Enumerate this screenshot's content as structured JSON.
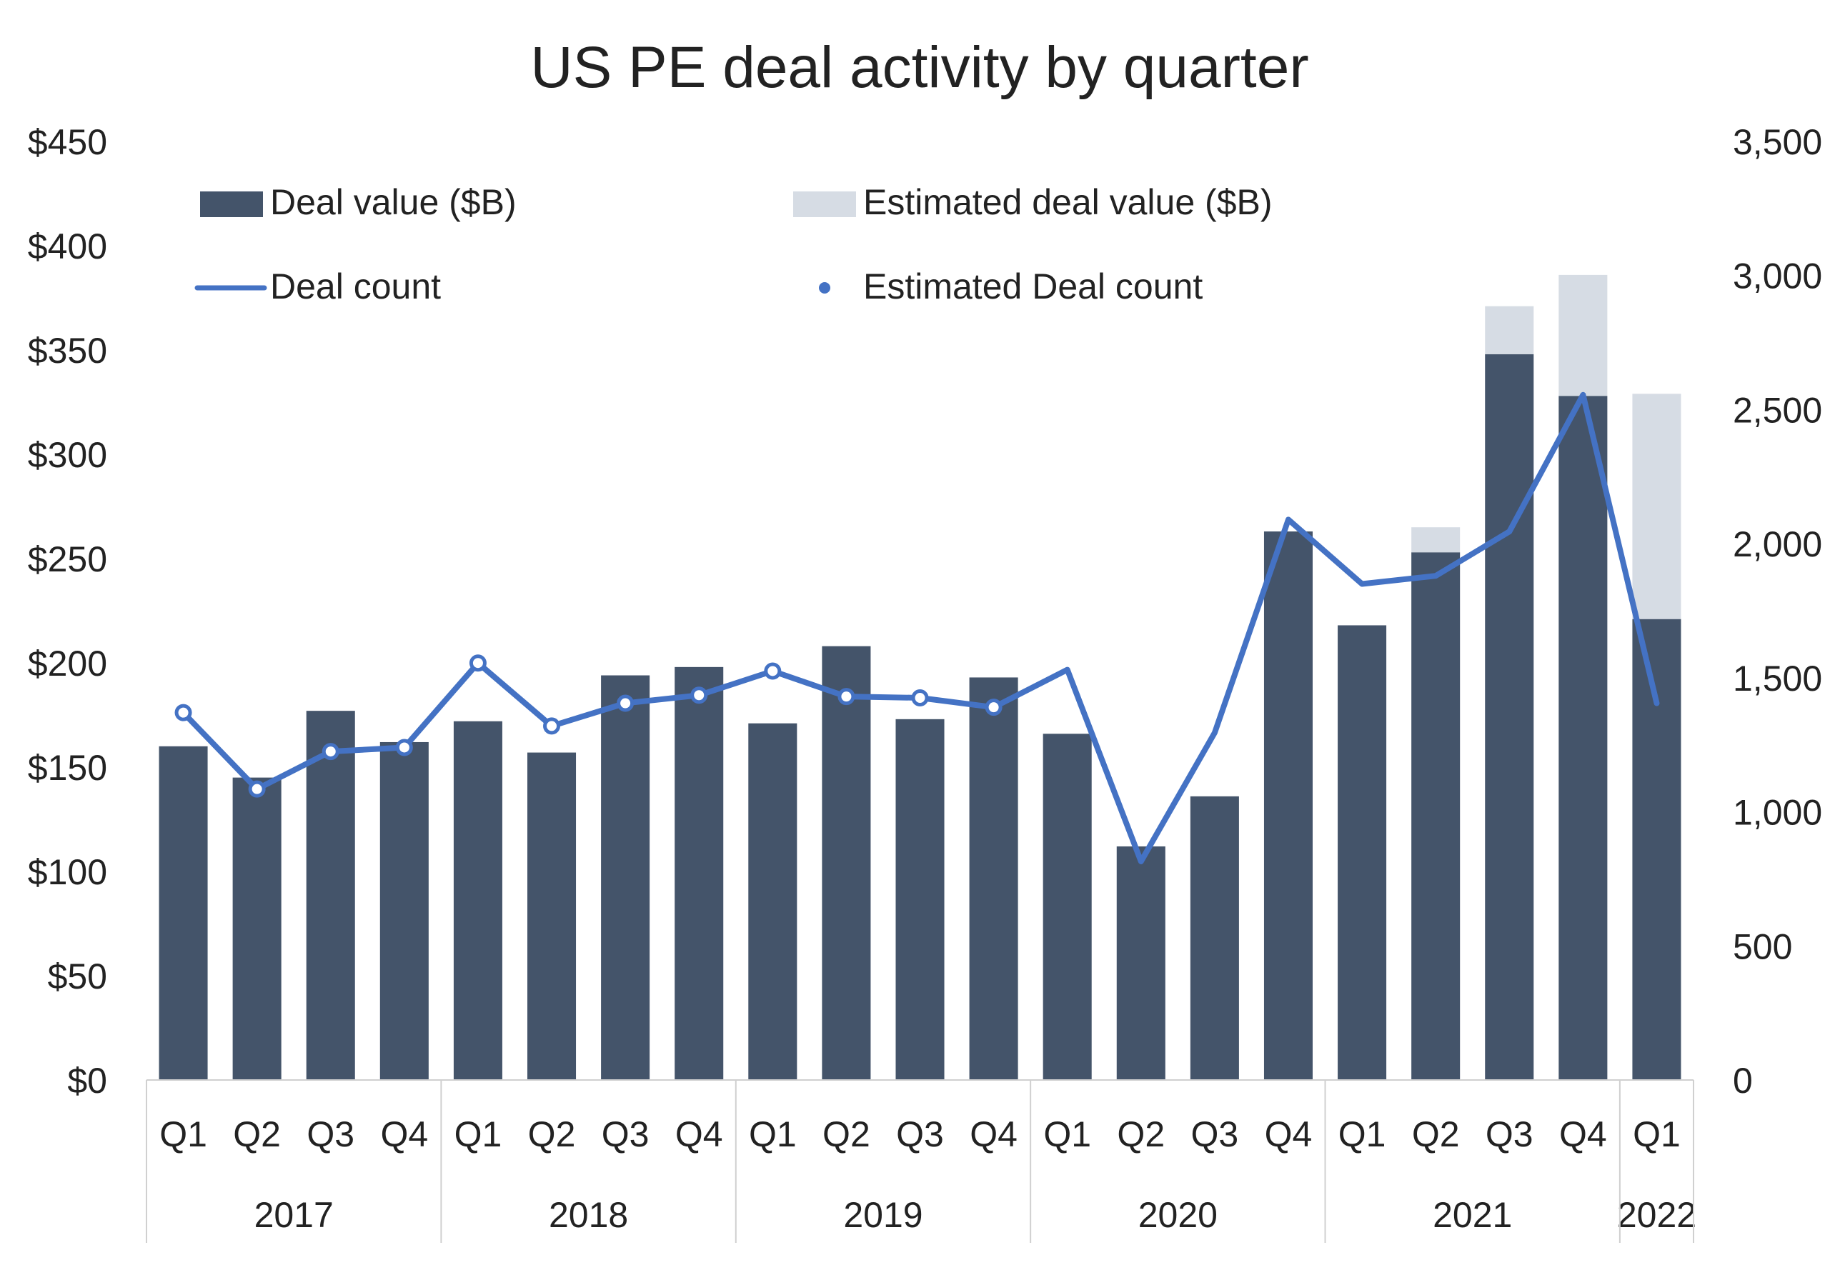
{
  "chart_data": {
    "type": "bar",
    "title": "US PE deal activity by quarter",
    "quarters": [
      "Q1",
      "Q2",
      "Q3",
      "Q4",
      "Q1",
      "Q2",
      "Q3",
      "Q4",
      "Q1",
      "Q2",
      "Q3",
      "Q4",
      "Q1",
      "Q2",
      "Q3",
      "Q4",
      "Q1",
      "Q2",
      "Q3",
      "Q4",
      "Q1"
    ],
    "year_groups": [
      {
        "label": "2017",
        "count": 4
      },
      {
        "label": "2018",
        "count": 4
      },
      {
        "label": "2019",
        "count": 4
      },
      {
        "label": "2020",
        "count": 4
      },
      {
        "label": "2021",
        "count": 4
      },
      {
        "label": "2022",
        "count": 1
      }
    ],
    "left_axis": {
      "ylim": [
        0,
        450
      ],
      "ticks": [
        0,
        50,
        100,
        150,
        200,
        250,
        300,
        350,
        400,
        450
      ],
      "tick_labels": [
        "$0",
        "$50",
        "$100",
        "$150",
        "$200",
        "$250",
        "$300",
        "$350",
        "$400",
        "$450"
      ]
    },
    "right_axis": {
      "ylim": [
        0,
        3500
      ],
      "ticks": [
        0,
        500,
        1000,
        1500,
        2000,
        2500,
        3000,
        3500
      ],
      "tick_labels": [
        "0",
        "500",
        "1,000",
        "1,500",
        "2,000",
        "2,500",
        "3,000",
        "3,500"
      ]
    },
    "series": [
      {
        "name": "Deal value ($B)",
        "kind": "bar",
        "axis": "left",
        "color": "#44546a",
        "values": [
          160,
          145,
          177,
          162,
          172,
          157,
          194,
          198,
          171,
          208,
          173,
          193,
          166,
          112,
          136,
          263,
          218,
          253,
          348,
          328,
          221
        ]
      },
      {
        "name": "Estimated deal value ($B)",
        "kind": "bar-stack",
        "axis": "left",
        "color": "#d6dce4",
        "values": [
          0,
          0,
          0,
          0,
          0,
          0,
          0,
          0,
          0,
          0,
          0,
          0,
          0,
          0,
          0,
          0,
          0,
          12,
          23,
          58,
          108
        ]
      },
      {
        "name": "Deal count",
        "kind": "line",
        "axis": "right",
        "color": "#4472c4",
        "values": [
          1370,
          1085,
          1225,
          1240,
          1555,
          1320,
          1405,
          1435,
          1525,
          1430,
          1425,
          1390,
          1530,
          815,
          1295,
          2090,
          1850,
          1880,
          2045,
          2555,
          1405
        ]
      },
      {
        "name": "Estimated Deal count",
        "kind": "marker",
        "axis": "right",
        "color": "#4472c4",
        "values": [
          1370,
          1085,
          1225,
          1240,
          1555,
          1320,
          1405,
          1435,
          1525,
          1430,
          1425,
          1390,
          null,
          null,
          null,
          null,
          null,
          null,
          null,
          null,
          null
        ]
      }
    ],
    "legend_placement": "top"
  }
}
